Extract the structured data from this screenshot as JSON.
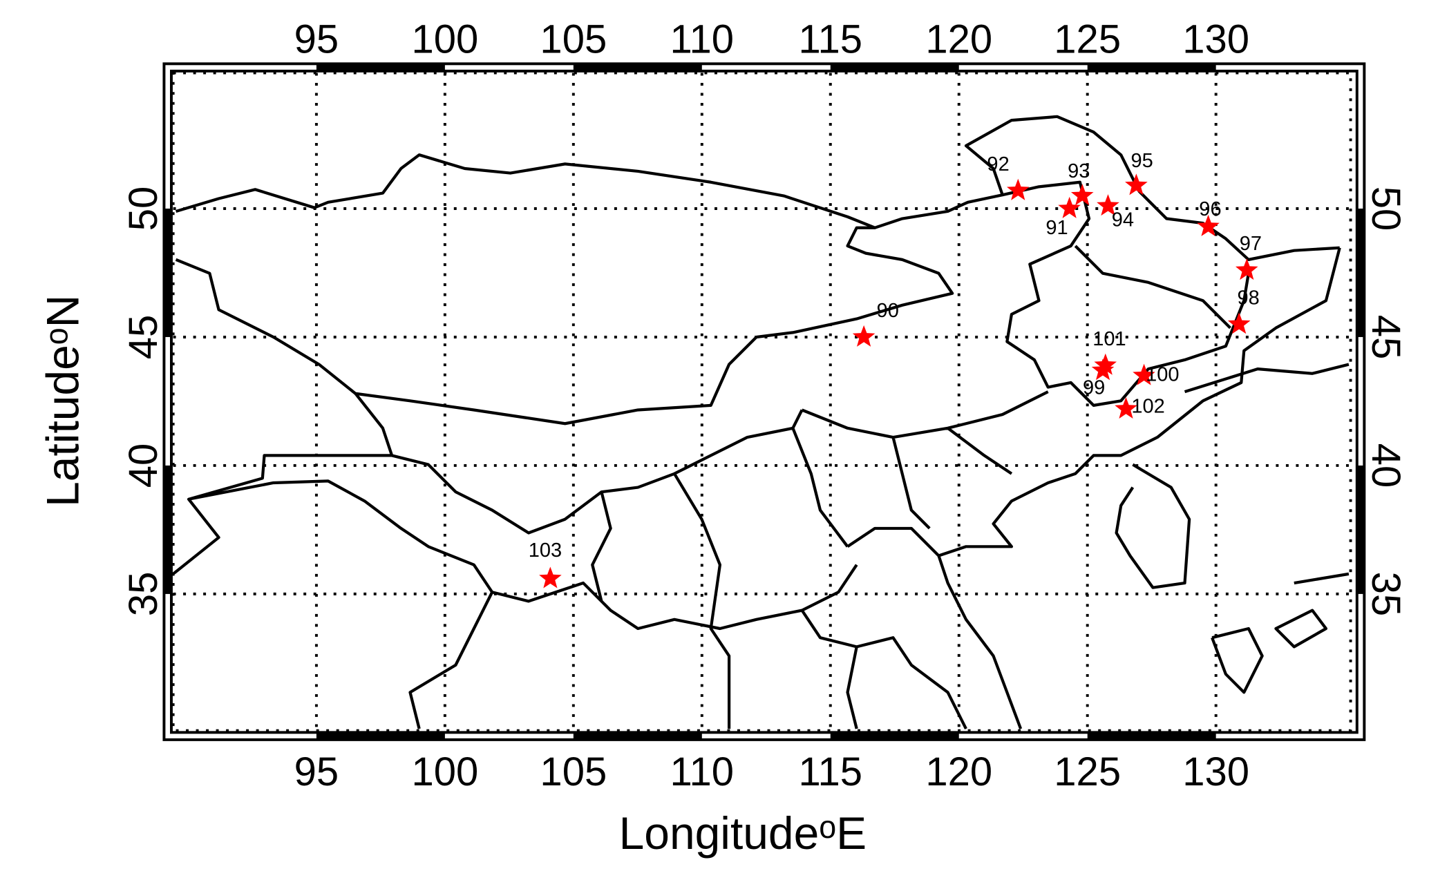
{
  "chart_data": {
    "type": "scatter",
    "xlabel": "Longitudeᵒ​E",
    "ylabel": "Latitudeᵒ​N",
    "x": [
      116.3,
      124.3,
      122.3,
      124.8,
      125.8,
      126.9,
      129.7,
      131.2,
      130.9,
      125.6,
      127.2,
      125.7,
      126.5,
      104.1
    ],
    "values": [
      45.0,
      50.0,
      50.7,
      50.5,
      50.1,
      50.9,
      49.3,
      47.6,
      45.5,
      43.7,
      43.5,
      43.9,
      42.2,
      35.6
    ],
    "point_labels": [
      "90",
      "91",
      "92",
      "93",
      "94",
      "95",
      "96",
      "97",
      "98",
      "99",
      "100",
      "101",
      "102",
      "103"
    ],
    "color": "#ff0000",
    "marker": "star",
    "xlim": [
      89.6,
      135.3
    ],
    "ylim": [
      29.7,
      55.3
    ],
    "xticks": [
      95,
      100,
      105,
      110,
      115,
      120,
      125,
      130
    ],
    "yticks": [
      35,
      40,
      45,
      50
    ],
    "grid": true
  }
}
